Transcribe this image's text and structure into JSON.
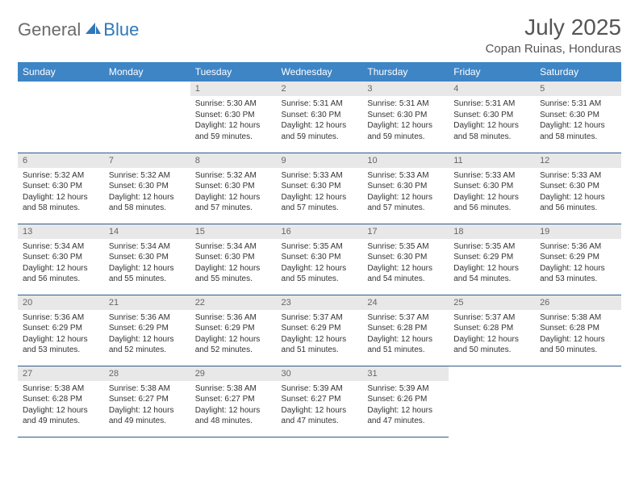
{
  "brand": {
    "word1": "General",
    "word2": "Blue",
    "color_general": "#6b6b6b",
    "color_blue": "#2f78b9"
  },
  "title": "July 2025",
  "location": "Copan Ruinas, Honduras",
  "header_bg": "#3e85c6",
  "header_text_color": "#ffffff",
  "daynum_bg": "#e8e8e8",
  "border_color": "#2f5a8a",
  "columns": [
    "Sunday",
    "Monday",
    "Tuesday",
    "Wednesday",
    "Thursday",
    "Friday",
    "Saturday"
  ],
  "weeks": [
    [
      {
        "n": "",
        "sr": "",
        "ss": "",
        "dl": ""
      },
      {
        "n": "",
        "sr": "",
        "ss": "",
        "dl": ""
      },
      {
        "n": "1",
        "sr": "Sunrise: 5:30 AM",
        "ss": "Sunset: 6:30 PM",
        "dl": "Daylight: 12 hours and 59 minutes."
      },
      {
        "n": "2",
        "sr": "Sunrise: 5:31 AM",
        "ss": "Sunset: 6:30 PM",
        "dl": "Daylight: 12 hours and 59 minutes."
      },
      {
        "n": "3",
        "sr": "Sunrise: 5:31 AM",
        "ss": "Sunset: 6:30 PM",
        "dl": "Daylight: 12 hours and 59 minutes."
      },
      {
        "n": "4",
        "sr": "Sunrise: 5:31 AM",
        "ss": "Sunset: 6:30 PM",
        "dl": "Daylight: 12 hours and 58 minutes."
      },
      {
        "n": "5",
        "sr": "Sunrise: 5:31 AM",
        "ss": "Sunset: 6:30 PM",
        "dl": "Daylight: 12 hours and 58 minutes."
      }
    ],
    [
      {
        "n": "6",
        "sr": "Sunrise: 5:32 AM",
        "ss": "Sunset: 6:30 PM",
        "dl": "Daylight: 12 hours and 58 minutes."
      },
      {
        "n": "7",
        "sr": "Sunrise: 5:32 AM",
        "ss": "Sunset: 6:30 PM",
        "dl": "Daylight: 12 hours and 58 minutes."
      },
      {
        "n": "8",
        "sr": "Sunrise: 5:32 AM",
        "ss": "Sunset: 6:30 PM",
        "dl": "Daylight: 12 hours and 57 minutes."
      },
      {
        "n": "9",
        "sr": "Sunrise: 5:33 AM",
        "ss": "Sunset: 6:30 PM",
        "dl": "Daylight: 12 hours and 57 minutes."
      },
      {
        "n": "10",
        "sr": "Sunrise: 5:33 AM",
        "ss": "Sunset: 6:30 PM",
        "dl": "Daylight: 12 hours and 57 minutes."
      },
      {
        "n": "11",
        "sr": "Sunrise: 5:33 AM",
        "ss": "Sunset: 6:30 PM",
        "dl": "Daylight: 12 hours and 56 minutes."
      },
      {
        "n": "12",
        "sr": "Sunrise: 5:33 AM",
        "ss": "Sunset: 6:30 PM",
        "dl": "Daylight: 12 hours and 56 minutes."
      }
    ],
    [
      {
        "n": "13",
        "sr": "Sunrise: 5:34 AM",
        "ss": "Sunset: 6:30 PM",
        "dl": "Daylight: 12 hours and 56 minutes."
      },
      {
        "n": "14",
        "sr": "Sunrise: 5:34 AM",
        "ss": "Sunset: 6:30 PM",
        "dl": "Daylight: 12 hours and 55 minutes."
      },
      {
        "n": "15",
        "sr": "Sunrise: 5:34 AM",
        "ss": "Sunset: 6:30 PM",
        "dl": "Daylight: 12 hours and 55 minutes."
      },
      {
        "n": "16",
        "sr": "Sunrise: 5:35 AM",
        "ss": "Sunset: 6:30 PM",
        "dl": "Daylight: 12 hours and 55 minutes."
      },
      {
        "n": "17",
        "sr": "Sunrise: 5:35 AM",
        "ss": "Sunset: 6:30 PM",
        "dl": "Daylight: 12 hours and 54 minutes."
      },
      {
        "n": "18",
        "sr": "Sunrise: 5:35 AM",
        "ss": "Sunset: 6:29 PM",
        "dl": "Daylight: 12 hours and 54 minutes."
      },
      {
        "n": "19",
        "sr": "Sunrise: 5:36 AM",
        "ss": "Sunset: 6:29 PM",
        "dl": "Daylight: 12 hours and 53 minutes."
      }
    ],
    [
      {
        "n": "20",
        "sr": "Sunrise: 5:36 AM",
        "ss": "Sunset: 6:29 PM",
        "dl": "Daylight: 12 hours and 53 minutes."
      },
      {
        "n": "21",
        "sr": "Sunrise: 5:36 AM",
        "ss": "Sunset: 6:29 PM",
        "dl": "Daylight: 12 hours and 52 minutes."
      },
      {
        "n": "22",
        "sr": "Sunrise: 5:36 AM",
        "ss": "Sunset: 6:29 PM",
        "dl": "Daylight: 12 hours and 52 minutes."
      },
      {
        "n": "23",
        "sr": "Sunrise: 5:37 AM",
        "ss": "Sunset: 6:29 PM",
        "dl": "Daylight: 12 hours and 51 minutes."
      },
      {
        "n": "24",
        "sr": "Sunrise: 5:37 AM",
        "ss": "Sunset: 6:28 PM",
        "dl": "Daylight: 12 hours and 51 minutes."
      },
      {
        "n": "25",
        "sr": "Sunrise: 5:37 AM",
        "ss": "Sunset: 6:28 PM",
        "dl": "Daylight: 12 hours and 50 minutes."
      },
      {
        "n": "26",
        "sr": "Sunrise: 5:38 AM",
        "ss": "Sunset: 6:28 PM",
        "dl": "Daylight: 12 hours and 50 minutes."
      }
    ],
    [
      {
        "n": "27",
        "sr": "Sunrise: 5:38 AM",
        "ss": "Sunset: 6:28 PM",
        "dl": "Daylight: 12 hours and 49 minutes."
      },
      {
        "n": "28",
        "sr": "Sunrise: 5:38 AM",
        "ss": "Sunset: 6:27 PM",
        "dl": "Daylight: 12 hours and 49 minutes."
      },
      {
        "n": "29",
        "sr": "Sunrise: 5:38 AM",
        "ss": "Sunset: 6:27 PM",
        "dl": "Daylight: 12 hours and 48 minutes."
      },
      {
        "n": "30",
        "sr": "Sunrise: 5:39 AM",
        "ss": "Sunset: 6:27 PM",
        "dl": "Daylight: 12 hours and 47 minutes."
      },
      {
        "n": "31",
        "sr": "Sunrise: 5:39 AM",
        "ss": "Sunset: 6:26 PM",
        "dl": "Daylight: 12 hours and 47 minutes."
      },
      {
        "n": "",
        "sr": "",
        "ss": "",
        "dl": ""
      },
      {
        "n": "",
        "sr": "",
        "ss": "",
        "dl": ""
      }
    ]
  ]
}
